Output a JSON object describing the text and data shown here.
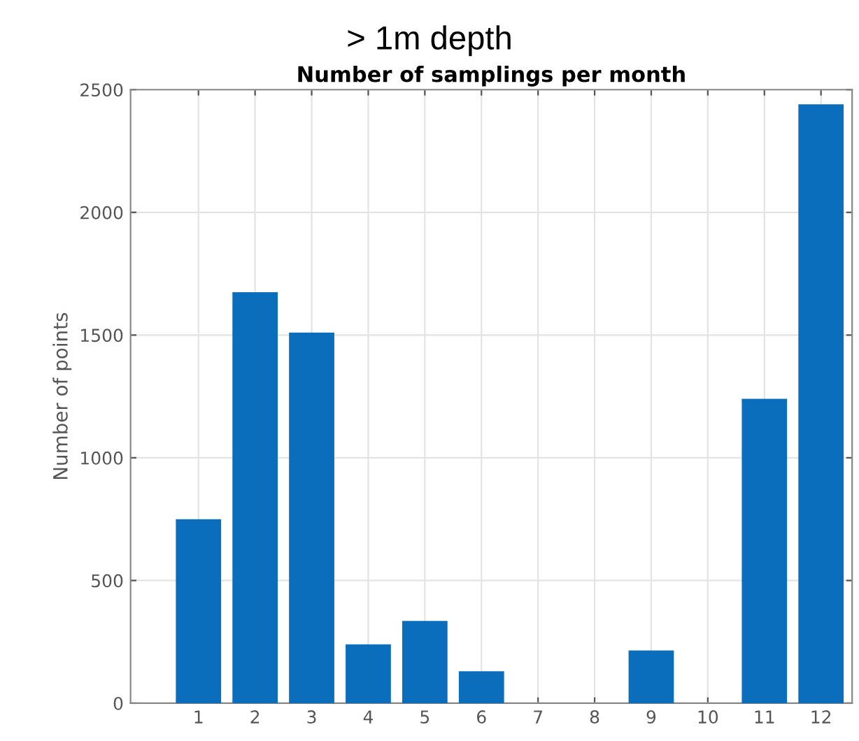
{
  "chart_data": {
    "type": "bar",
    "title": "> 1m depth",
    "subtitle": "Number of samplings per month",
    "ylabel": "Number of points",
    "categories": [
      "1",
      "2",
      "3",
      "4",
      "5",
      "6",
      "7",
      "8",
      "9",
      "10",
      "11",
      "12"
    ],
    "values": [
      750,
      1675,
      1510,
      240,
      335,
      130,
      0,
      0,
      215,
      0,
      1240,
      2440
    ],
    "color": "#0a6ebd",
    "ylim": [
      0,
      2500
    ],
    "yticks": [
      0,
      500,
      1000,
      1500,
      2000,
      2500
    ],
    "grid": true
  }
}
